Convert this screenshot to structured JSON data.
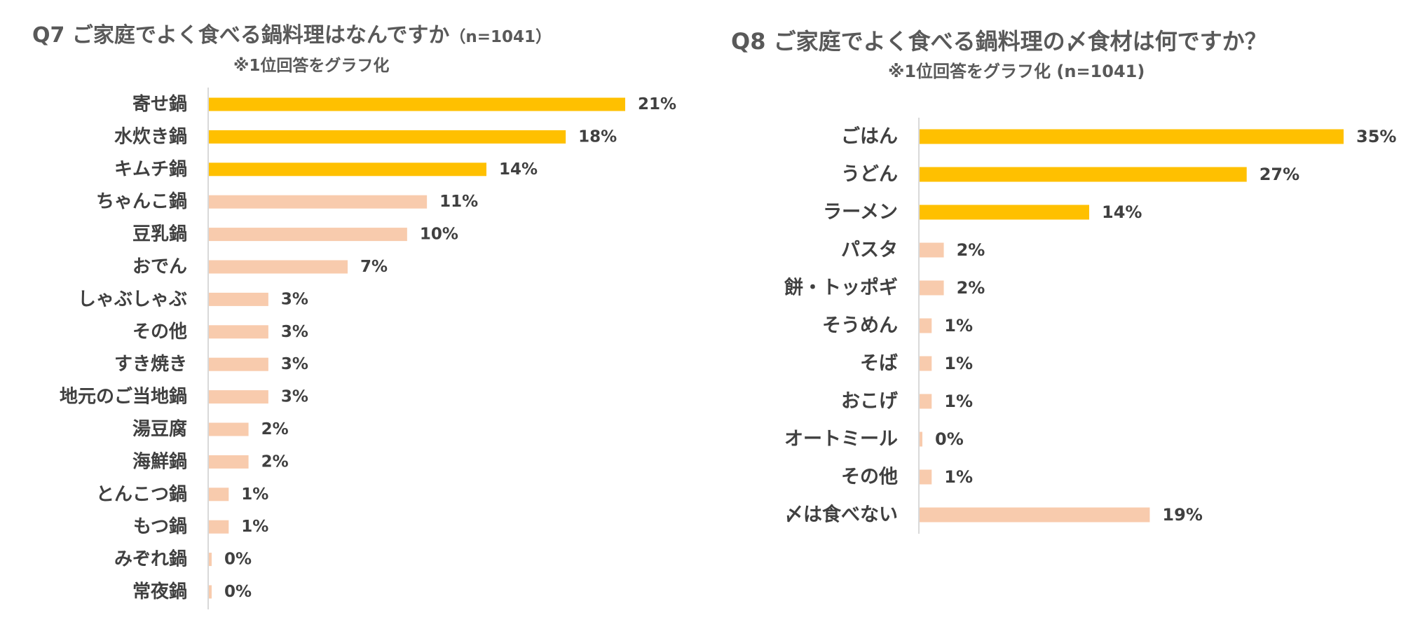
{
  "colors": {
    "highlight": "#FFC000",
    "normal": "#F8CBAD",
    "axis": "#D9D9D9",
    "text": "#404040",
    "title": "#595959"
  },
  "chart_data": [
    {
      "type": "bar",
      "orientation": "horizontal",
      "title": "Q7 ご家庭でよく食べる鍋料理はなんですか",
      "title_n": "（n=1041）",
      "subtitle": "※1位回答をグラフ化",
      "categories": [
        "寄せ鍋",
        "水炊き鍋",
        "キムチ鍋",
        "ちゃんこ鍋",
        "豆乳鍋",
        "おでん",
        "しゃぶしゃぶ",
        "その他",
        "すき焼き",
        "地元のご当地鍋",
        "湯豆腐",
        "海鮮鍋",
        "とんこつ鍋",
        "もつ鍋",
        "みぞれ鍋",
        "常夜鍋"
      ],
      "values": [
        21,
        18,
        14,
        11,
        10,
        7,
        3,
        3,
        3,
        3,
        2,
        2,
        1,
        1,
        0,
        0
      ],
      "value_labels": [
        "21%",
        "18%",
        "14%",
        "11%",
        "10%",
        "7%",
        "3%",
        "3%",
        "3%",
        "3%",
        "2%",
        "2%",
        "1%",
        "1%",
        "0%",
        "0%"
      ],
      "highlight_top": 3,
      "xlim": [
        0,
        21
      ]
    },
    {
      "type": "bar",
      "orientation": "horizontal",
      "title": "Q8 ご家庭でよく食べる鍋料理の〆食材は何ですか？",
      "title_n": "",
      "subtitle": "※1位回答をグラフ化 (n=1041)",
      "categories": [
        "ごはん",
        "うどん",
        "ラーメン",
        "パスタ",
        "餅・トッポギ",
        "そうめん",
        "そば",
        "おこげ",
        "オートミール",
        "その他",
        "〆は食べない"
      ],
      "values": [
        35,
        27,
        14,
        2,
        2,
        1,
        1,
        1,
        0,
        1,
        19
      ],
      "value_labels": [
        "35%",
        "27%",
        "14%",
        "2%",
        "2%",
        "1%",
        "1%",
        "1%",
        "0%",
        "1%",
        "19%"
      ],
      "highlight_top": 3,
      "xlim": [
        0,
        35
      ]
    }
  ]
}
